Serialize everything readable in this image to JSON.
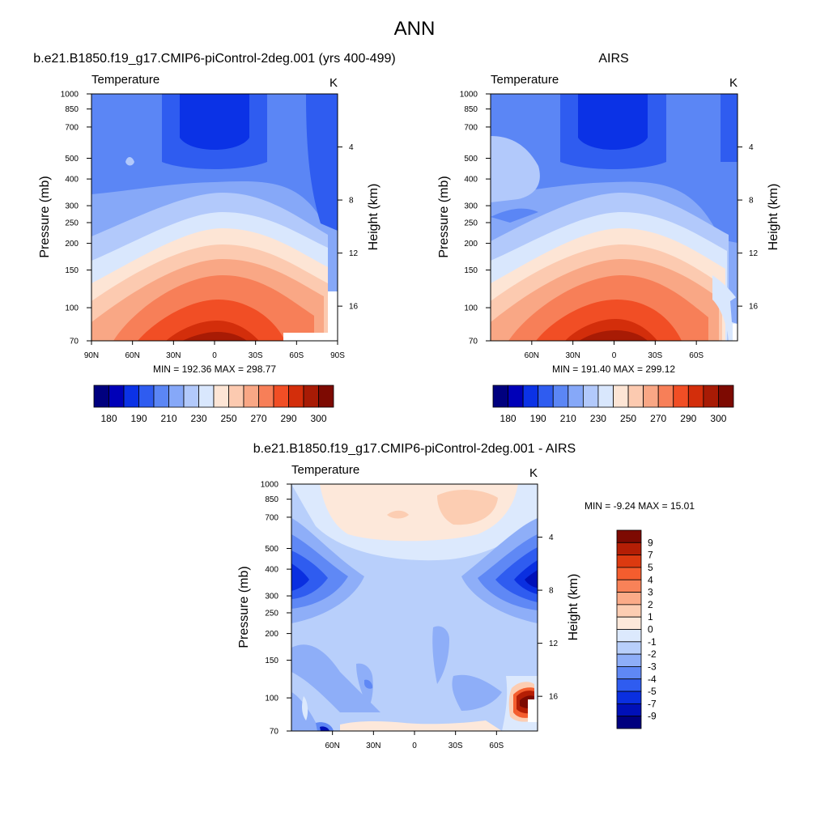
{
  "figure": {
    "title": "ANN"
  },
  "chart_data": [
    {
      "type": "heatmap",
      "id": "model",
      "title": "b.e21.B1850.f19_g17.CMIP6-piControl-2deg.001 (yrs 400-499)",
      "left_label": "Temperature",
      "right_label": "K",
      "ylabel": "Pressure (mb)",
      "y2label": "Height (km)",
      "xlabel": "",
      "x_ticks": [
        "90N",
        "60N",
        "30N",
        "0",
        "30S",
        "60S",
        "90S"
      ],
      "y_ticks": [
        "70",
        "100",
        "150",
        "200",
        "250",
        "300",
        "400",
        "500",
        "700",
        "850",
        "1000"
      ],
      "height_ticks": [
        "4",
        "8",
        "12",
        "16"
      ],
      "stats": "MIN = 192.36  MAX = 298.77",
      "min": 192.36,
      "max": 298.77,
      "colorbar": {
        "orientation": "horizontal",
        "labels": [
          "180",
          "190",
          "210",
          "230",
          "250",
          "270",
          "290",
          "300"
        ],
        "colors": [
          "#00007f",
          "#0000b8",
          "#0b32e6",
          "#2f5cf0",
          "#5b86f5",
          "#86a8f8",
          "#b2c9fb",
          "#d9e7fd",
          "#fde5d5",
          "#fccab0",
          "#f9a785",
          "#f77f58",
          "#f14e25",
          "#d32e0b",
          "#a81b05",
          "#7d0a02"
        ]
      }
    },
    {
      "type": "heatmap",
      "id": "obs",
      "title": "AIRS",
      "left_label": "Temperature",
      "right_label": "K",
      "ylabel": "Pressure (mb)",
      "y2label": "Height (km)",
      "xlabel": "",
      "x_ticks": [
        "60N",
        "30N",
        "0",
        "30S",
        "60S"
      ],
      "y_ticks": [
        "70",
        "100",
        "150",
        "200",
        "250",
        "300",
        "400",
        "500",
        "700",
        "850",
        "1000"
      ],
      "height_ticks": [
        "4",
        "8",
        "12",
        "16"
      ],
      "stats": "MIN = 191.40  MAX = 299.12",
      "min": 191.4,
      "max": 299.12,
      "colorbar": {
        "orientation": "horizontal",
        "labels": [
          "180",
          "190",
          "210",
          "230",
          "250",
          "270",
          "290",
          "300"
        ],
        "colors": [
          "#00007f",
          "#0000b8",
          "#0b32e6",
          "#2f5cf0",
          "#5b86f5",
          "#86a8f8",
          "#b2c9fb",
          "#d9e7fd",
          "#fde5d5",
          "#fccab0",
          "#f9a785",
          "#f77f58",
          "#f14e25",
          "#d32e0b",
          "#a81b05",
          "#7d0a02"
        ]
      }
    },
    {
      "type": "heatmap",
      "id": "diff",
      "title": "b.e21.B1850.f19_g17.CMIP6-piControl-2deg.001 - AIRS",
      "left_label": "Temperature",
      "right_label": "K",
      "ylabel": "Pressure (mb)",
      "y2label": "Height (km)",
      "xlabel": "",
      "x_ticks": [
        "60N",
        "30N",
        "0",
        "30S",
        "60S"
      ],
      "y_ticks": [
        "70",
        "100",
        "150",
        "200",
        "250",
        "300",
        "400",
        "500",
        "700",
        "850",
        "1000"
      ],
      "height_ticks": [
        "4",
        "8",
        "12",
        "16"
      ],
      "stats": "MIN =  -9.24  MAX =  15.01",
      "min": -9.24,
      "max": 15.01,
      "colorbar": {
        "orientation": "vertical",
        "labels": [
          "9",
          "7",
          "5",
          "4",
          "3",
          "2",
          "1",
          "0",
          "-1",
          "-2",
          "-3",
          "-4",
          "-5",
          "-7",
          "-9"
        ],
        "colors": [
          "#7d0a02",
          "#b41e05",
          "#dc3a10",
          "#f45d2e",
          "#f88258",
          "#fbab88",
          "#fccdb2",
          "#fde8da",
          "#dce9fd",
          "#b8cffb",
          "#8eaef8",
          "#5f88f5",
          "#2f5cf0",
          "#0a2fe0",
          "#0010b8",
          "#00007f"
        ]
      }
    }
  ]
}
